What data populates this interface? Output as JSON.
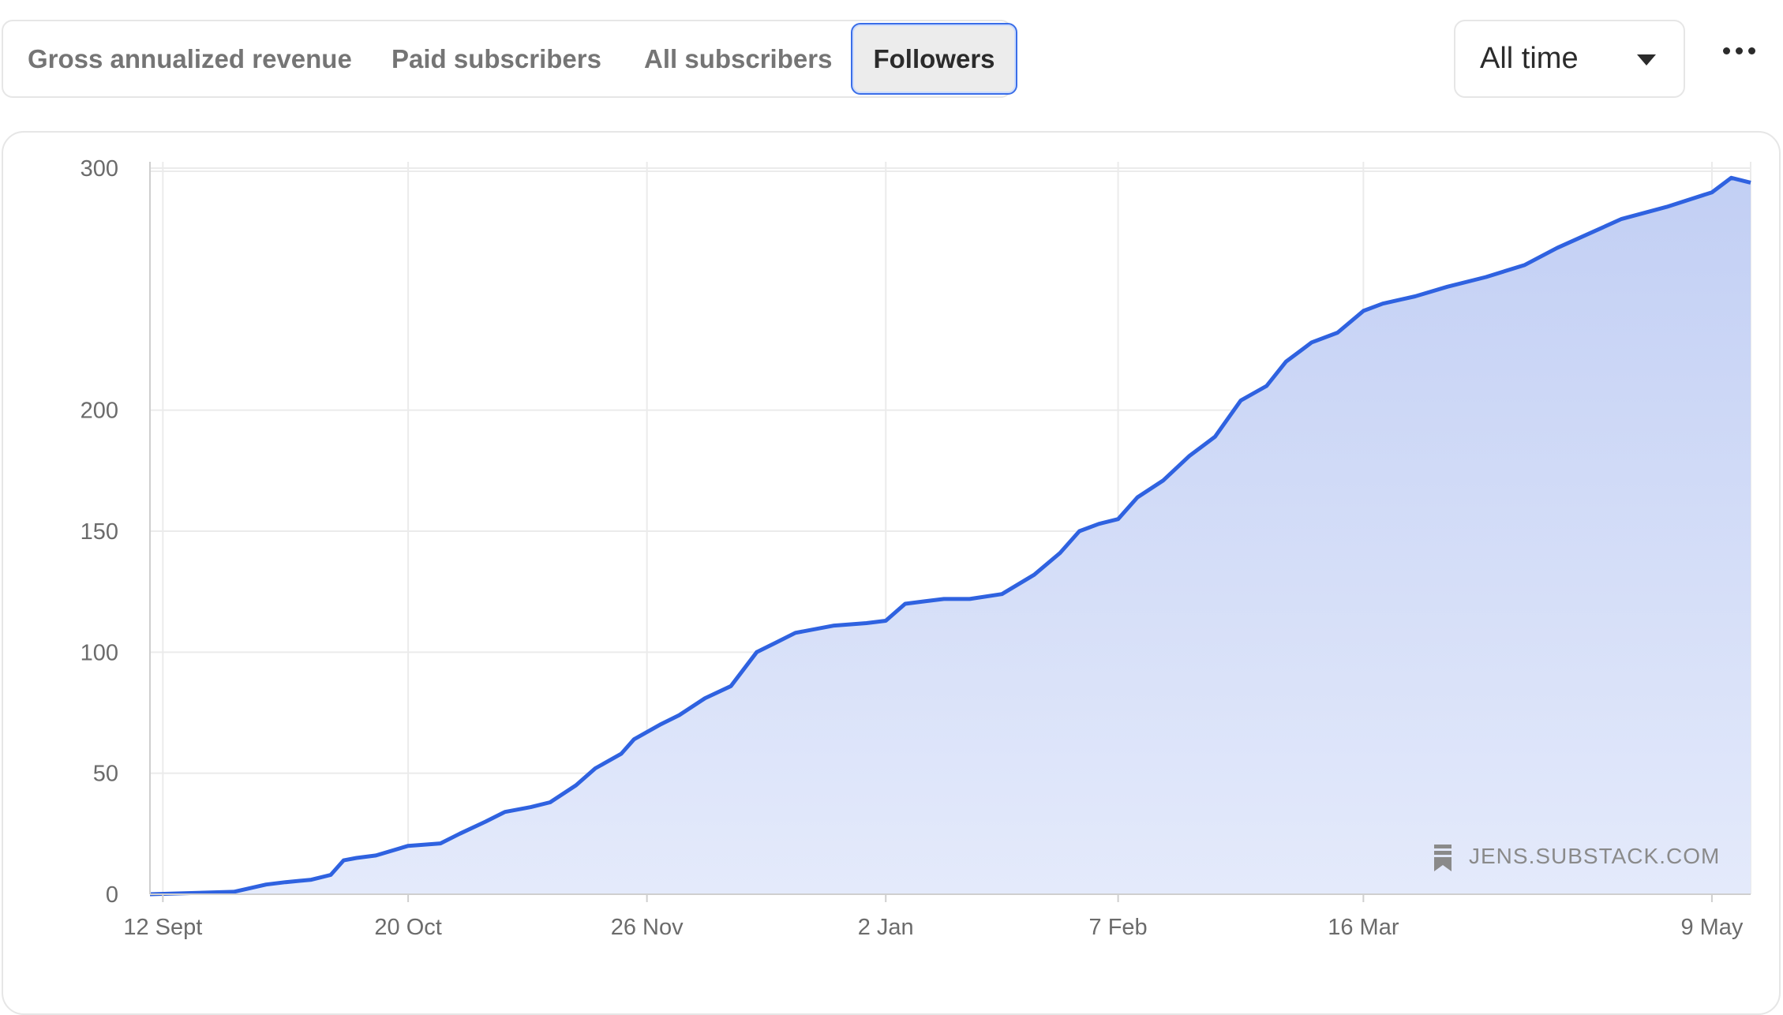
{
  "tabs": [
    {
      "label": "Gross annualized revenue",
      "active": false
    },
    {
      "label": "Paid subscribers",
      "active": false
    },
    {
      "label": "All subscribers",
      "active": false
    },
    {
      "label": "Followers",
      "active": true
    }
  ],
  "range_select": {
    "value": "All time",
    "icon": "caret-down-icon"
  },
  "more_menu": {
    "icon": "more-horizontal-icon"
  },
  "watermark": {
    "text": "JENS.SUBSTACK.COM",
    "icon": "substack-bookmark-icon"
  },
  "colors": {
    "line": "#2f62e0",
    "area_top": "#c2cff4",
    "area_bottom": "#e4eafb",
    "grid": "#ebebeb",
    "axis": "#cfcfcf"
  },
  "chart_data": {
    "type": "area",
    "title": "",
    "xlabel": "",
    "ylabel": "",
    "grid": true,
    "ylim": [
      0,
      300
    ],
    "y_ticks": [
      {
        "label": "0",
        "value": 0
      },
      {
        "label": "50",
        "value": 50
      },
      {
        "label": "100",
        "value": 100
      },
      {
        "label": "150",
        "value": 150
      },
      {
        "label": "200",
        "value": 200
      },
      {
        "label": "300",
        "value": 300
      }
    ],
    "x_ticks": [
      {
        "label": "12 Sept",
        "date": "2023-09-12"
      },
      {
        "label": "20 Oct",
        "date": "2023-10-20"
      },
      {
        "label": "26 Nov",
        "date": "2023-11-26"
      },
      {
        "label": "2 Jan",
        "date": "2024-01-02"
      },
      {
        "label": "7 Feb",
        "date": "2024-02-07"
      },
      {
        "label": "16 Mar",
        "date": "2024-03-16"
      },
      {
        "label": "9 May",
        "date": "2024-05-09"
      }
    ],
    "xlim": [
      "2023-09-10",
      "2024-05-15"
    ],
    "series": [
      {
        "x": [
          "2023-09-10",
          "2023-09-23",
          "2023-09-28",
          "2023-10-01",
          "2023-10-05",
          "2023-10-08",
          "2023-10-10",
          "2023-10-12",
          "2023-10-15",
          "2023-10-20",
          "2023-10-25",
          "2023-10-28",
          "2023-11-01",
          "2023-11-04",
          "2023-11-08",
          "2023-11-11",
          "2023-11-15",
          "2023-11-18",
          "2023-11-22",
          "2023-11-24",
          "2023-11-28",
          "2023-12-01",
          "2023-12-05",
          "2023-12-09",
          "2023-12-13",
          "2023-12-16",
          "2023-12-19",
          "2023-12-25",
          "2023-12-30",
          "2024-01-02",
          "2024-01-05",
          "2024-01-08",
          "2024-01-11",
          "2024-01-15",
          "2024-01-20",
          "2024-01-25",
          "2024-01-29",
          "2024-02-01",
          "2024-02-04",
          "2024-02-07",
          "2024-02-10",
          "2024-02-14",
          "2024-02-18",
          "2024-02-22",
          "2024-02-26",
          "2024-03-01",
          "2024-03-04",
          "2024-03-08",
          "2024-03-12",
          "2024-03-16",
          "2024-03-19",
          "2024-03-24",
          "2024-03-29",
          "2024-04-04",
          "2024-04-10",
          "2024-04-15",
          "2024-04-20",
          "2024-04-25",
          "2024-05-02",
          "2024-05-09",
          "2024-05-12",
          "2024-05-15"
        ],
        "y": [
          0,
          1,
          4,
          5,
          6,
          8,
          14,
          15,
          16,
          20,
          21,
          25,
          30,
          34,
          36,
          38,
          45,
          52,
          58,
          64,
          70,
          74,
          81,
          86,
          100,
          104,
          108,
          111,
          112,
          113,
          120,
          121,
          122,
          122,
          124,
          132,
          141,
          150,
          153,
          155,
          164,
          171,
          181,
          189,
          204,
          210,
          220,
          228,
          232,
          241,
          244,
          247,
          251,
          255,
          260,
          267,
          273,
          279,
          284,
          290,
          296,
          294
        ]
      }
    ]
  }
}
